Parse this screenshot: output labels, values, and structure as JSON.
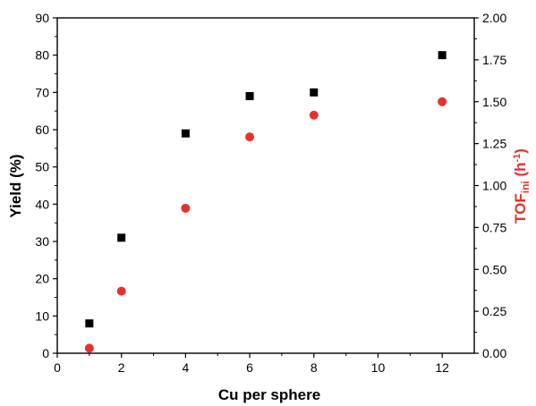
{
  "chart_data": {
    "type": "scatter",
    "xlabel": "Cu per sphere",
    "ylabel_left": "Yield (%)",
    "ylabel_right": {
      "main": "TOF",
      "sub": "ini",
      "unit_prefix": " (h",
      "unit_sup": "-1",
      "unit_suffix": ")"
    },
    "xlim": [
      0,
      13
    ],
    "ylim_left": [
      0,
      90
    ],
    "ylim_right": [
      0,
      2.0
    ],
    "x_ticks": [
      "0",
      "2",
      "4",
      "6",
      "8",
      "10",
      "12"
    ],
    "y_left_ticks": [
      "0",
      "10",
      "20",
      "30",
      "40",
      "50",
      "60",
      "70",
      "80",
      "90"
    ],
    "y_right_ticks": [
      "0.00",
      "0.25",
      "0.50",
      "0.75",
      "1.00",
      "1.25",
      "1.50",
      "1.75",
      "2.00"
    ],
    "series": [
      {
        "axis": "left",
        "marker": "square",
        "color": "#000000",
        "x": [
          1,
          2,
          4,
          6,
          8,
          12
        ],
        "y": [
          8,
          31,
          59,
          69,
          70,
          80
        ]
      },
      {
        "axis": "right",
        "marker": "circle",
        "color": "#e8312f",
        "x": [
          1,
          2,
          4,
          6,
          8,
          12
        ],
        "y": [
          0.03,
          0.37,
          0.865,
          1.29,
          1.42,
          1.5
        ]
      }
    ],
    "grid": false,
    "right_axis_color": "#e8312f"
  }
}
